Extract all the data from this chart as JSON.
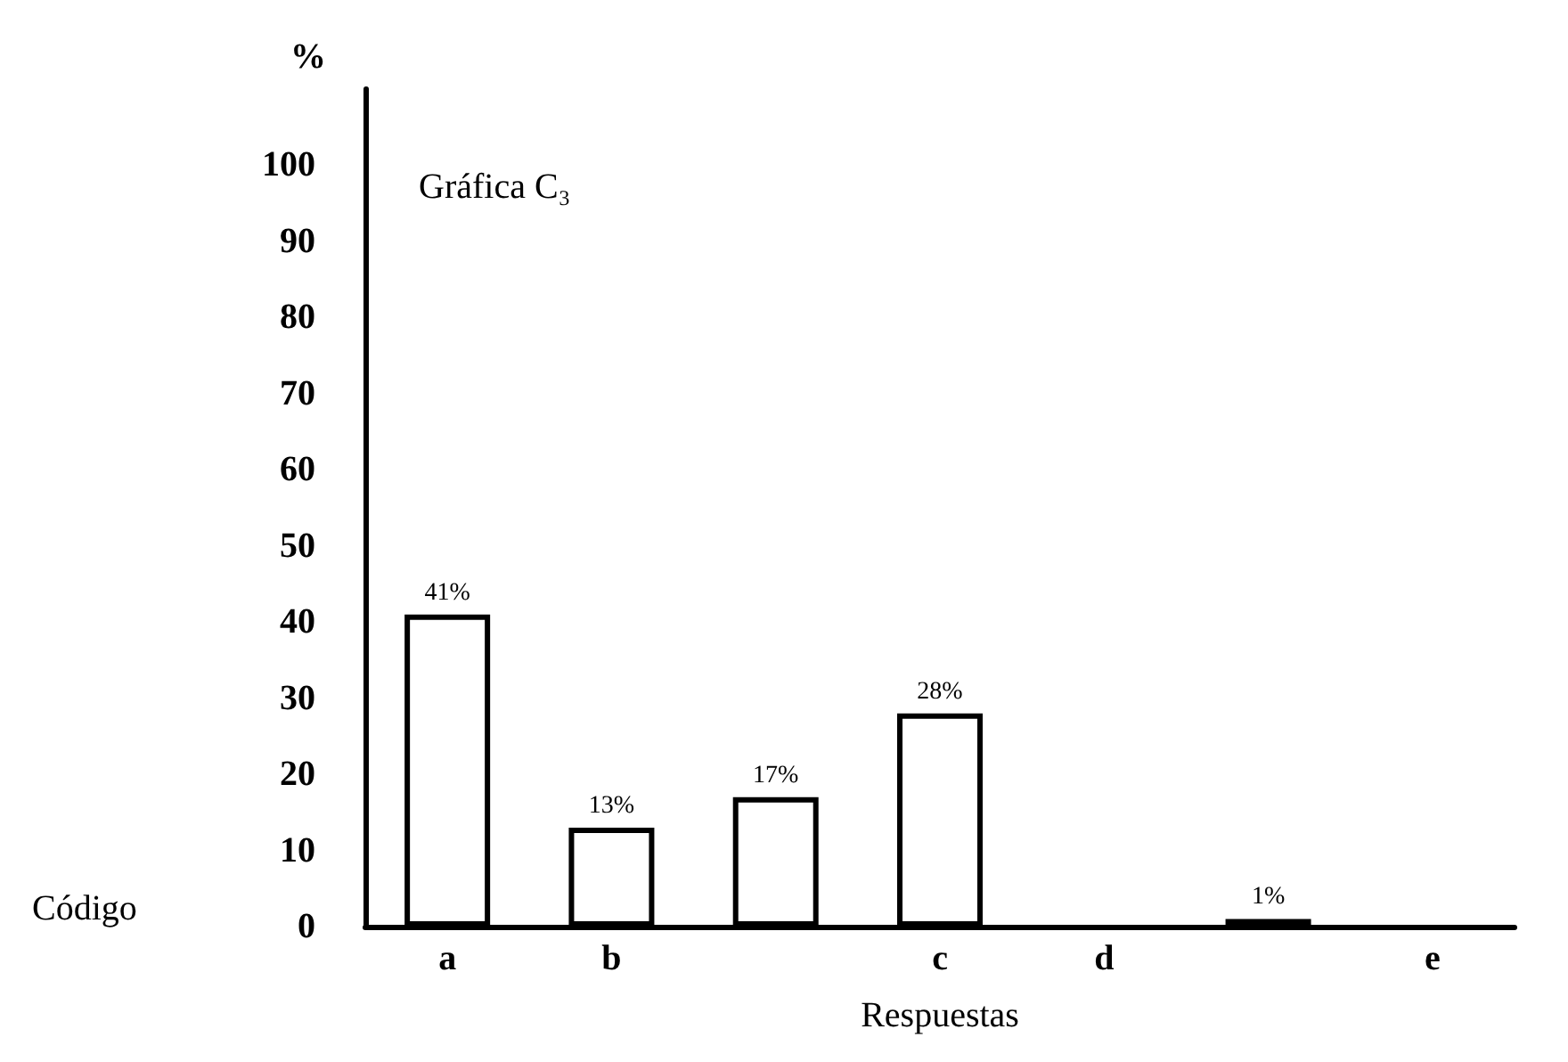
{
  "chart_data": {
    "type": "bar",
    "title": "Gráfica C₃",
    "ylabel": "%",
    "xlabel": "Respuestas",
    "annotations": [
      "Código"
    ],
    "categories": [
      "a",
      "b",
      null,
      "c",
      "d",
      null,
      "e"
    ],
    "values": [
      41,
      13,
      17,
      28,
      null,
      1,
      null
    ],
    "value_labels": [
      "41%",
      "13%",
      "17%",
      "28%",
      null,
      "1%",
      null
    ],
    "color": "#ffffff",
    "ylim": [
      0,
      110
    ],
    "yticks": [
      0,
      10,
      20,
      30,
      40,
      50,
      60,
      70,
      80,
      90,
      100
    ],
    "grid": false
  }
}
